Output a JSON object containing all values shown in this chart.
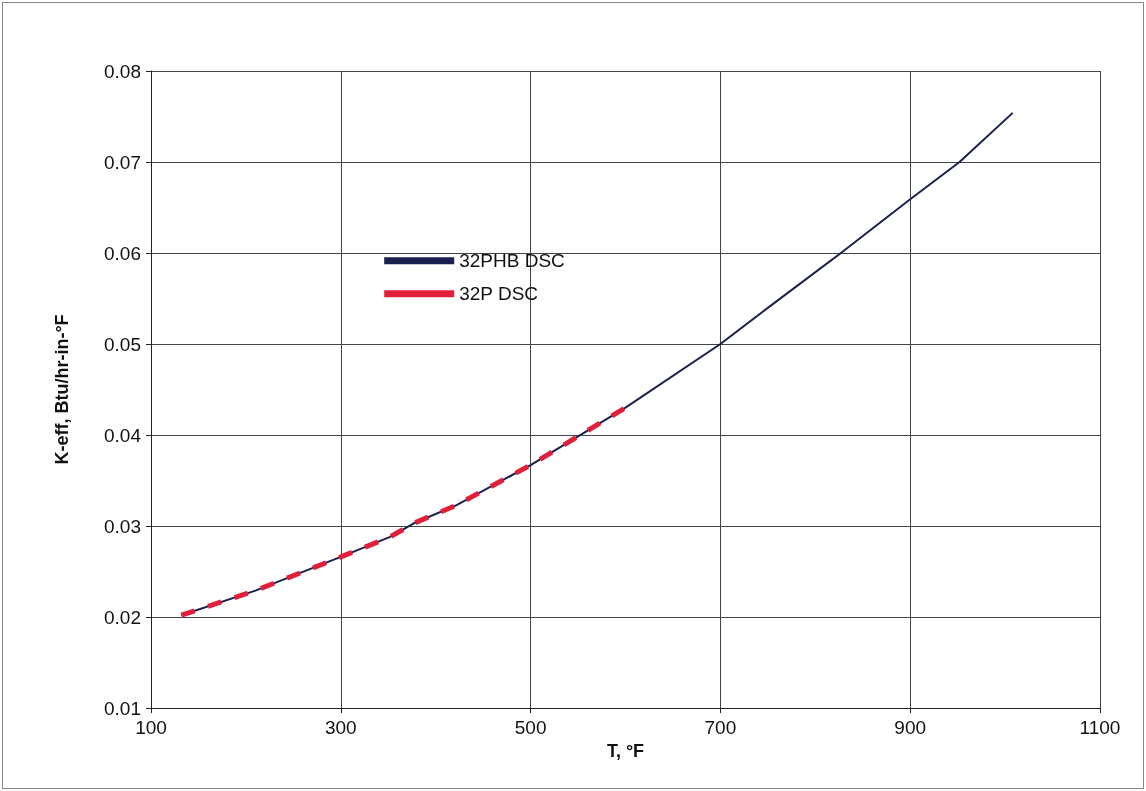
{
  "chart_data": {
    "type": "line",
    "xlabel": "T, °F",
    "ylabel": "K-eff, Btu/hr-in-°F",
    "xlim": [
      100,
      1100
    ],
    "xticks": [
      100,
      300,
      500,
      700,
      900,
      1100
    ],
    "ylim": [
      0.01,
      0.08
    ],
    "yticks": [
      0.01,
      0.02,
      0.03,
      0.04,
      0.05,
      0.06,
      0.07,
      0.08
    ],
    "grid": true,
    "legend": "top",
    "marker": "none",
    "series": [
      {
        "name": "32PHB DSC",
        "color": "#1a1f4e",
        "line_style": "solid",
        "x": [
          132,
          210,
          300,
          352,
          377,
          422,
          500,
          557,
          600,
          700,
          758,
          827,
          900,
          952,
          1008
        ],
        "values": [
          0.0202,
          0.0229,
          0.0266,
          0.0288,
          0.0303,
          0.0323,
          0.0367,
          0.0403,
          0.043,
          0.05,
          0.0546,
          0.06,
          0.0659,
          0.07,
          0.0754
        ]
      },
      {
        "name": "32P DSC",
        "color": "#e0203a",
        "line_style": "dashed",
        "x": [
          132,
          210,
          300,
          352,
          377,
          422,
          500,
          557,
          600
        ],
        "values": [
          0.0202,
          0.0229,
          0.0266,
          0.0288,
          0.0303,
          0.0323,
          0.0367,
          0.0403,
          0.043
        ]
      }
    ]
  }
}
